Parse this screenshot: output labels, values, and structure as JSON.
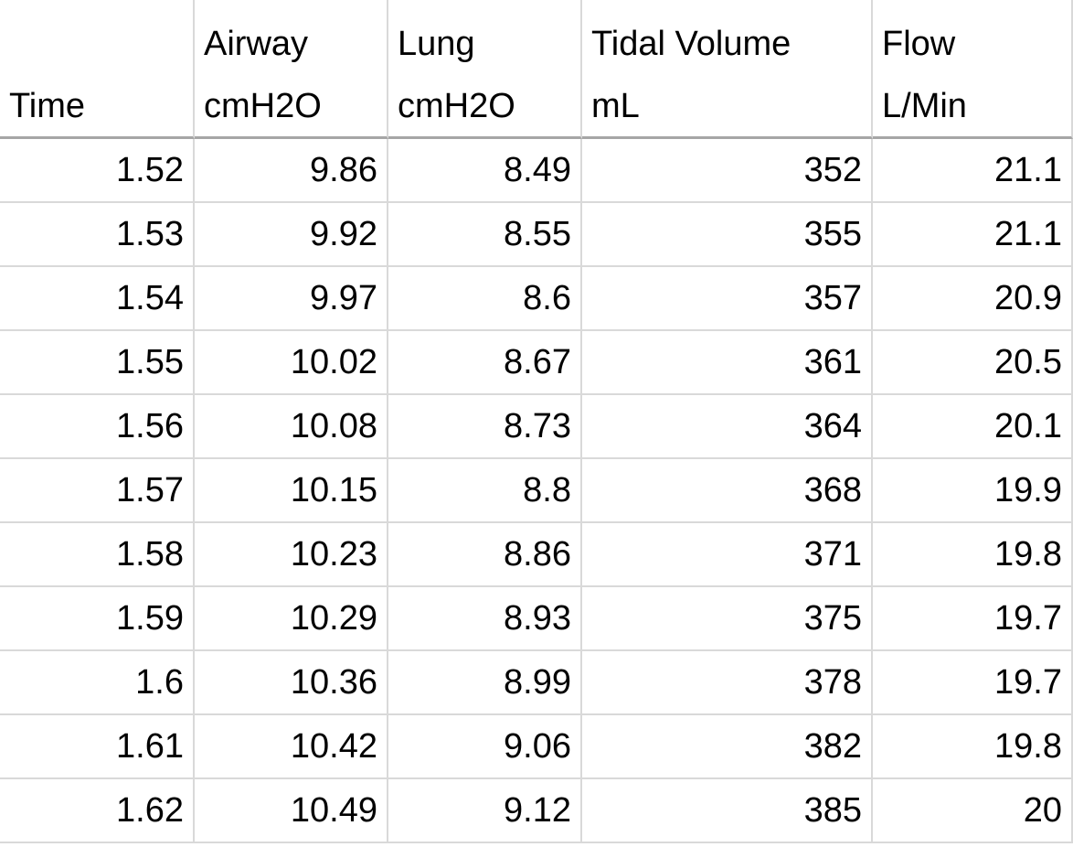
{
  "table": {
    "header": [
      [
        "Time"
      ],
      [
        "Airway",
        "cmH2O"
      ],
      [
        "Lung",
        "cmH2O"
      ],
      [
        "Tidal Volume",
        "mL"
      ],
      [
        "Flow",
        "L/Min"
      ]
    ],
    "rows": [
      [
        1.52,
        9.86,
        8.49,
        352,
        21.1
      ],
      [
        1.53,
        9.92,
        8.55,
        355,
        21.1
      ],
      [
        1.54,
        9.97,
        8.6,
        357,
        20.9
      ],
      [
        1.55,
        10.02,
        8.67,
        361,
        20.5
      ],
      [
        1.56,
        10.08,
        8.73,
        364,
        20.1
      ],
      [
        1.57,
        10.15,
        8.8,
        368,
        19.9
      ],
      [
        1.58,
        10.23,
        8.86,
        371,
        19.8
      ],
      [
        1.59,
        10.29,
        8.93,
        375,
        19.7
      ],
      [
        1.6,
        10.36,
        8.99,
        378,
        19.7
      ],
      [
        1.61,
        10.42,
        9.06,
        382,
        19.8
      ],
      [
        1.62,
        10.49,
        9.12,
        385,
        20
      ]
    ]
  }
}
